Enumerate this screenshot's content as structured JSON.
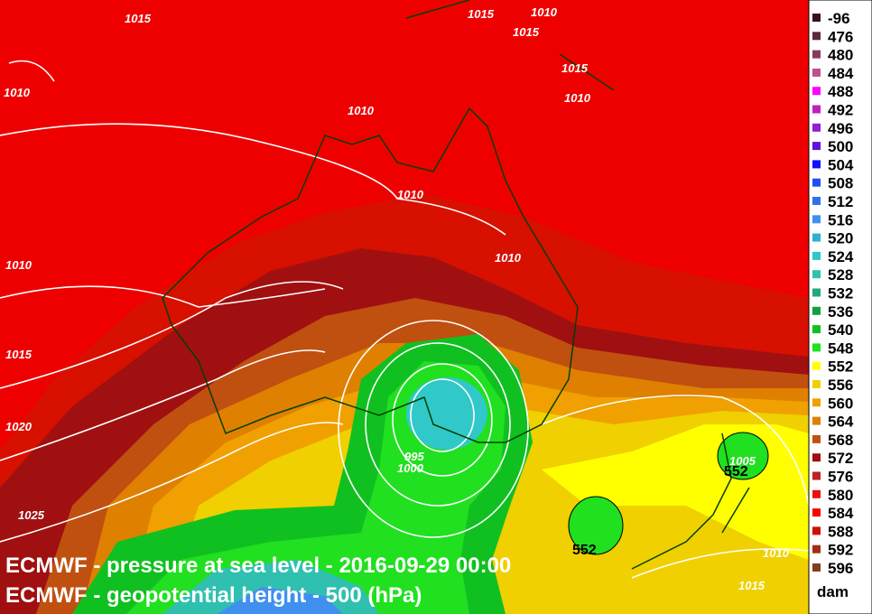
{
  "captions": [
    "ECMWF - pressure at sea level - 2016-09-29 00:00",
    "ECMWF - geopotential height - 500 (hPa)"
  ],
  "contour_labels": [
    "1015",
    "1015",
    "1010",
    "1015",
    "1015",
    "1010",
    "1010",
    "1010",
    "1010",
    "1010",
    "1010",
    "1015",
    "1020",
    "1025",
    "995",
    "1000",
    "1005",
    "552",
    "552",
    "1010",
    "1015"
  ],
  "legend": {
    "unit": "dam",
    "items": [
      {
        "label": "-96",
        "color": "#3a1028"
      },
      {
        "label": "476",
        "color": "#5a2a3a"
      },
      {
        "label": "480",
        "color": "#8a3a60"
      },
      {
        "label": "484",
        "color": "#c0508a"
      },
      {
        "label": "488",
        "color": "#ff00ff"
      },
      {
        "label": "492",
        "color": "#c020c0"
      },
      {
        "label": "496",
        "color": "#9020d0"
      },
      {
        "label": "500",
        "color": "#6010e0"
      },
      {
        "label": "504",
        "color": "#1010ff"
      },
      {
        "label": "508",
        "color": "#2050f0"
      },
      {
        "label": "512",
        "color": "#3070f0"
      },
      {
        "label": "516",
        "color": "#4090f0"
      },
      {
        "label": "520",
        "color": "#30b0d0"
      },
      {
        "label": "524",
        "color": "#30c8c8"
      },
      {
        "label": "528",
        "color": "#30c0b0"
      },
      {
        "label": "532",
        "color": "#20a880"
      },
      {
        "label": "536",
        "color": "#10a040"
      },
      {
        "label": "540",
        "color": "#10c020"
      },
      {
        "label": "548",
        "color": "#20e020"
      },
      {
        "label": "552",
        "color": "#ffff00"
      },
      {
        "label": "556",
        "color": "#f0d000"
      },
      {
        "label": "560",
        "color": "#f0a000"
      },
      {
        "label": "564",
        "color": "#e08000"
      },
      {
        "label": "568",
        "color": "#c05010"
      },
      {
        "label": "572",
        "color": "#a01010"
      },
      {
        "label": "576",
        "color": "#c02020"
      },
      {
        "label": "580",
        "color": "#ee1010"
      },
      {
        "label": "584",
        "color": "#ff0000"
      },
      {
        "label": "588",
        "color": "#d01000"
      },
      {
        "label": "592",
        "color": "#a03010"
      },
      {
        "label": "596",
        "color": "#804020"
      }
    ]
  }
}
